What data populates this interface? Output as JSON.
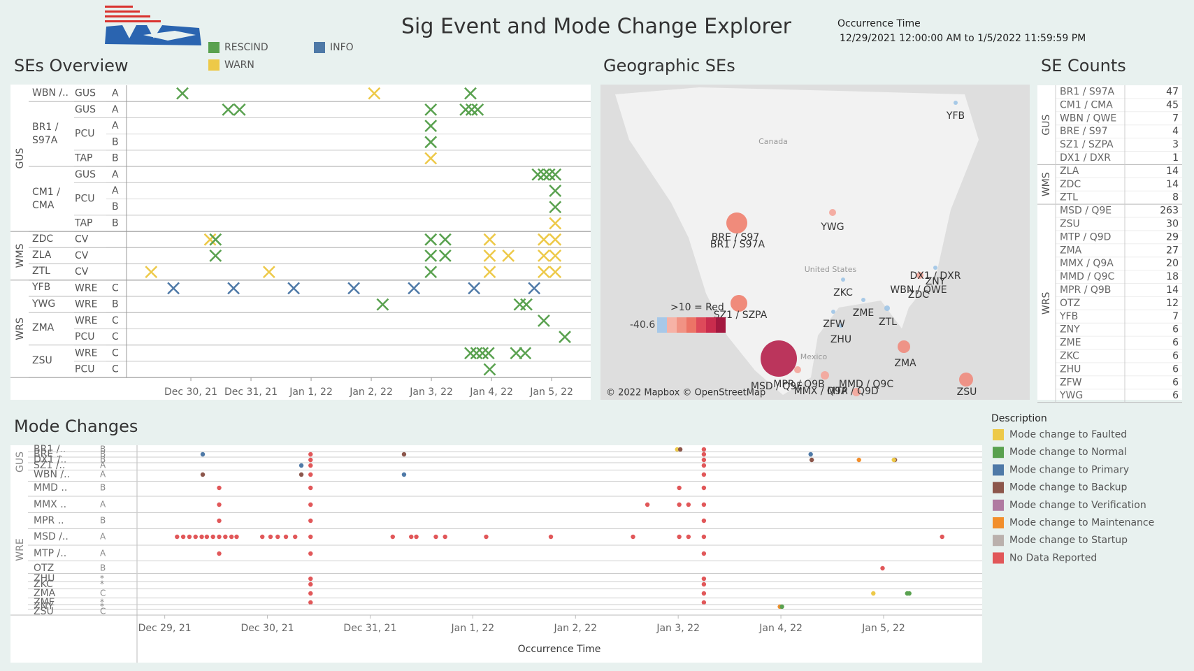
{
  "header": {
    "title": "Sig Event and Mode Change Explorer",
    "time_label": "Occurrence Time",
    "time_range": "12/29/2021 12:00:00 AM to 1/5/2022 11:59:59 PM"
  },
  "ses_overview": {
    "title": "SEs Overview",
    "legend": [
      {
        "name": "RESCIND",
        "color": "#59a14f"
      },
      {
        "name": "INFO",
        "color": "#4e79a7"
      },
      {
        "name": "WARN",
        "color": "#edc948"
      }
    ],
    "xlim": [
      -1.07,
      6.65
    ],
    "xticks": [
      {
        "value": 0,
        "label": "Dec 30, 21"
      },
      {
        "value": 1,
        "label": "Dec 31, 21"
      },
      {
        "value": 2,
        "label": "Jan 1, 22"
      },
      {
        "value": 3,
        "label": "Jan 2, 22"
      },
      {
        "value": 4,
        "label": "Jan 3, 22"
      },
      {
        "value": 5,
        "label": "Jan 4, 22"
      },
      {
        "value": 6,
        "label": "Jan 5, 22"
      }
    ],
    "groups": [
      {
        "name": "GUS",
        "ses": [
          {
            "name": "WBN /..",
            "subs": [
              {
                "name": "GUS",
                "rows": [
                  {
                    "level": "A",
                    "marks": {
                      "RESCIND": [
                        -0.14,
                        4.65
                      ],
                      "WARN": [
                        3.05
                      ]
                    }
                  }
                ]
              }
            ]
          },
          {
            "name": "BR1 / S97A",
            "subs": [
              {
                "name": "GUS",
                "rows": [
                  {
                    "level": "A",
                    "marks": {
                      "RESCIND": [
                        0.62,
                        0.81,
                        3.99,
                        4.57,
                        4.67,
                        4.77
                      ]
                    }
                  }
                ]
              },
              {
                "name": "PCU",
                "rows": [
                  {
                    "level": "A",
                    "marks": {
                      "RESCIND": [
                        3.99
                      ]
                    }
                  },
                  {
                    "level": "B",
                    "marks": {
                      "RESCIND": [
                        3.99
                      ]
                    }
                  }
                ]
              },
              {
                "name": "TAP",
                "rows": [
                  {
                    "level": "B",
                    "marks": {
                      "WARN": [
                        3.99
                      ]
                    }
                  }
                ]
              }
            ]
          },
          {
            "name": "CM1 / CMA",
            "subs": [
              {
                "name": "GUS",
                "rows": [
                  {
                    "level": "A",
                    "marks": {
                      "RESCIND": [
                        5.77,
                        5.87,
                        5.96,
                        6.06
                      ]
                    }
                  }
                ]
              },
              {
                "name": "PCU",
                "rows": [
                  {
                    "level": "A",
                    "marks": {
                      "RESCIND": [
                        6.06
                      ]
                    }
                  },
                  {
                    "level": "B",
                    "marks": {
                      "RESCIND": [
                        6.06
                      ]
                    }
                  }
                ]
              },
              {
                "name": "TAP",
                "rows": [
                  {
                    "level": "B",
                    "marks": {
                      "WARN": [
                        6.06
                      ]
                    }
                  }
                ]
              }
            ]
          }
        ]
      },
      {
        "name": "WMS",
        "ses": [
          {
            "name": "ZDC",
            "subs": [
              {
                "name": "CV",
                "rows": [
                  {
                    "level": null,
                    "marks": {
                      "WARN": [
                        0.32,
                        4.97,
                        5.87,
                        6.06
                      ],
                      "RESCIND": [
                        0.41,
                        3.99,
                        4.23
                      ]
                    }
                  }
                ]
              }
            ]
          },
          {
            "name": "ZLA",
            "subs": [
              {
                "name": "CV",
                "rows": [
                  {
                    "level": null,
                    "marks": {
                      "RESCIND": [
                        0.41,
                        3.99,
                        4.23
                      ],
                      "WARN": [
                        4.97,
                        5.28,
                        5.87,
                        6.06
                      ]
                    }
                  }
                ]
              }
            ]
          },
          {
            "name": "ZTL",
            "subs": [
              {
                "name": "CV",
                "rows": [
                  {
                    "level": null,
                    "marks": {
                      "WARN": [
                        -0.66,
                        1.3,
                        4.97,
                        5.87,
                        6.06
                      ],
                      "RESCIND": [
                        3.99
                      ]
                    }
                  }
                ]
              }
            ]
          }
        ]
      },
      {
        "name": "WRS",
        "ses": [
          {
            "name": "YFB",
            "subs": [
              {
                "name": "WRE",
                "rows": [
                  {
                    "level": "C",
                    "marks": {
                      "INFO": [
                        -0.29,
                        0.71,
                        1.71,
                        2.71,
                        3.71,
                        4.71,
                        5.71
                      ]
                    }
                  }
                ]
              }
            ]
          },
          {
            "name": "YWG",
            "subs": [
              {
                "name": "WRE",
                "rows": [
                  {
                    "level": "B",
                    "marks": {
                      "RESCIND": [
                        3.19,
                        5.47,
                        5.58
                      ]
                    }
                  }
                ]
              }
            ]
          },
          {
            "name": "ZMA",
            "subs": [
              {
                "name": "WRE",
                "rows": [
                  {
                    "level": "C",
                    "marks": {
                      "RESCIND": [
                        5.87
                      ]
                    }
                  }
                ]
              },
              {
                "name": "PCU",
                "rows": [
                  {
                    "level": "C",
                    "marks": {
                      "RESCIND": [
                        6.22
                      ]
                    }
                  }
                ]
              }
            ]
          },
          {
            "name": "ZSU",
            "subs": [
              {
                "name": "WRE",
                "rows": [
                  {
                    "level": "C",
                    "marks": {
                      "RESCIND": [
                        4.65,
                        4.75,
                        4.85,
                        4.95,
                        5.41,
                        5.56
                      ]
                    }
                  }
                ]
              },
              {
                "name": "PCU",
                "rows": [
                  {
                    "level": "C",
                    "marks": {
                      "RESCIND": [
                        4.97
                      ]
                    }
                  }
                ]
              }
            ]
          }
        ]
      }
    ]
  },
  "map": {
    "title": "Geographic SEs",
    "labels": [
      "YFB",
      "YWG",
      "BRE / S97",
      "BR1 / S97A",
      "SZ1 / SZPA",
      "ZKC",
      "ZME",
      "ZTL",
      "ZFW",
      "ZHU",
      "DX1 / DXR",
      "ZNY",
      "WBN / QWE",
      "ZDC",
      "ZMA",
      "MPR / Q9B",
      "MMD / Q9C",
      "MMX / Q9A",
      "MSD / Q9E",
      "MTP / Q9D",
      "ZSU"
    ],
    "regions": [
      "Canada",
      "United States",
      "Mexico"
    ],
    "legend_label": ">10 = Red",
    "color_min": -40.6,
    "credit": "© 2022 Mapbox © OpenStreetMap"
  },
  "se_counts": {
    "title": "SE Counts",
    "groups": [
      {
        "name": "GUS",
        "rows": [
          [
            "BR1 / S97A",
            47
          ],
          [
            "CM1 / CMA",
            45
          ],
          [
            "WBN / QWE",
            7
          ],
          [
            "BRE / S97",
            4
          ],
          [
            "SZ1 / SZPA",
            3
          ],
          [
            "DX1 / DXR",
            1
          ]
        ]
      },
      {
        "name": "WMS",
        "rows": [
          [
            "ZLA",
            14
          ],
          [
            "ZDC",
            14
          ],
          [
            "ZTL",
            8
          ]
        ]
      },
      {
        "name": "WRS",
        "rows": [
          [
            "MSD / Q9E",
            263
          ],
          [
            "ZSU",
            30
          ],
          [
            "MTP / Q9D",
            29
          ],
          [
            "ZMA",
            27
          ],
          [
            "MMX / Q9A",
            20
          ],
          [
            "MMD / Q9C",
            18
          ],
          [
            "MPR / Q9B",
            14
          ],
          [
            "OTZ",
            12
          ],
          [
            "YFB",
            7
          ],
          [
            "ZNY",
            6
          ],
          [
            "ZME",
            6
          ],
          [
            "ZKC",
            6
          ],
          [
            "ZHU",
            6
          ],
          [
            "ZFW",
            6
          ],
          [
            "YWG",
            6
          ]
        ]
      }
    ]
  },
  "mode_changes": {
    "title": "Mode Changes",
    "x_label": "Occurrence Time",
    "xlim": [
      -0.27,
      7.96
    ],
    "xticks": [
      {
        "value": 0,
        "label": "Dec 29, 21"
      },
      {
        "value": 1,
        "label": "Dec 30, 21"
      },
      {
        "value": 2,
        "label": "Dec 31, 21"
      },
      {
        "value": 3,
        "label": "Jan 1, 22"
      },
      {
        "value": 4,
        "label": "Jan 2, 22"
      },
      {
        "value": 5,
        "label": "Jan 3, 22"
      },
      {
        "value": 6,
        "label": "Jan 4, 22"
      },
      {
        "value": 7,
        "label": "Jan 5, 22"
      }
    ],
    "legend_title": "Description",
    "legend": [
      {
        "name": "Mode change to Faulted",
        "color": "#edc948"
      },
      {
        "name": "Mode change to Normal",
        "color": "#59a14f"
      },
      {
        "name": "Mode change to Primary",
        "color": "#4e79a7"
      },
      {
        "name": "Mode change to Backup",
        "color": "#8c564b"
      },
      {
        "name": "Mode change to Verification",
        "color": "#b07aa1"
      },
      {
        "name": "Mode change to Maintenance",
        "color": "#f28e2b"
      },
      {
        "name": "Mode change to Startup",
        "color": "#bab0ac"
      },
      {
        "name": "No Data Reported",
        "color": "#e15759"
      }
    ],
    "groups": [
      {
        "name": "GUS",
        "rows": [
          {
            "name": "BR1 /..",
            "level": "B",
            "dots": {
              "Mode change to Faulted": [
                4.99
              ],
              "Mode change to Backup": [
                5.02
              ],
              "No Data Reported": [
                5.25
              ]
            }
          },
          {
            "name": "BRE ..",
            "level": "B",
            "dots": {
              "Mode change to Primary": [
                0.37,
                6.29
              ],
              "No Data Reported": [
                1.42,
                5.25
              ],
              "Mode change to Backup": [
                2.33
              ]
            }
          },
          {
            "name": "DX1 /..",
            "level": "B",
            "dots": {
              "No Data Reported": [
                1.42,
                5.25
              ],
              "Mode change to Backup": [
                6.3,
                7.11
              ],
              "Mode change to Maintenance": [
                6.76
              ],
              "Mode change to Faulted": [
                7.1
              ]
            }
          },
          {
            "name": "SZ1 /..",
            "level": "A",
            "dots": {
              "Mode change to Primary": [
                1.33
              ],
              "No Data Reported": [
                1.42,
                5.25
              ]
            }
          },
          {
            "name": "WBN /..",
            "level": "A",
            "dots": {
              "Mode change to Backup": [
                0.37,
                1.33
              ],
              "No Data Reported": [
                1.42,
                5.25
              ],
              "Mode change to Primary": [
                2.33
              ]
            }
          }
        ]
      },
      {
        "name": "WRE",
        "rows": [
          {
            "name": "MMD ..",
            "level": "B",
            "dots": {
              "No Data Reported": [
                0.53,
                1.42,
                5.01,
                5.25
              ]
            }
          },
          {
            "name": "MMX ..",
            "level": "A",
            "dots": {
              "No Data Reported": [
                0.53,
                1.42,
                4.7,
                5.01,
                5.1,
                5.25
              ]
            }
          },
          {
            "name": "MPR ..",
            "level": "B",
            "dots": {
              "No Data Reported": [
                0.53,
                1.42,
                5.25
              ]
            }
          },
          {
            "name": "MSD /..",
            "level": "A",
            "dots": {
              "No Data Reported": [
                0.12,
                0.18,
                0.24,
                0.3,
                0.36,
                0.41,
                0.47,
                0.53,
                0.59,
                0.65,
                0.7,
                0.95,
                1.03,
                1.1,
                1.18,
                1.27,
                1.42,
                2.22,
                2.4,
                2.45,
                2.64,
                2.73,
                3.13,
                3.76,
                4.56,
                5.01,
                5.1,
                5.25,
                7.57
              ]
            }
          },
          {
            "name": "MTP /..",
            "level": "A",
            "dots": {
              "No Data Reported": [
                0.53,
                1.42,
                5.25
              ]
            }
          },
          {
            "name": "OTZ",
            "level": "B",
            "dots": {
              "No Data Reported": [
                6.99
              ]
            }
          },
          {
            "name": "ZHU",
            "level": "*",
            "dots": {
              "No Data Reported": [
                1.42,
                5.25
              ]
            }
          },
          {
            "name": "ZKC",
            "level": "*",
            "dots": {
              "No Data Reported": [
                1.42,
                5.25
              ]
            }
          },
          {
            "name": "ZMA",
            "level": "C",
            "dots": {
              "No Data Reported": [
                1.42,
                5.25
              ],
              "Mode change to Faulted": [
                6.9
              ],
              "Mode change to Normal": [
                7.23,
                7.25
              ]
            }
          },
          {
            "name": "ZME",
            "level": "*",
            "dots": {
              "No Data Reported": [
                1.42,
                5.25
              ]
            }
          },
          {
            "name": "ZNY",
            "level": "*",
            "dots": {
              "Mode change to Maintenance": [
                5.99
              ],
              "Mode change to Normal": [
                6.01
              ]
            }
          },
          {
            "name": "ZSU",
            "level": "C",
            "dots": {}
          }
        ]
      }
    ]
  }
}
